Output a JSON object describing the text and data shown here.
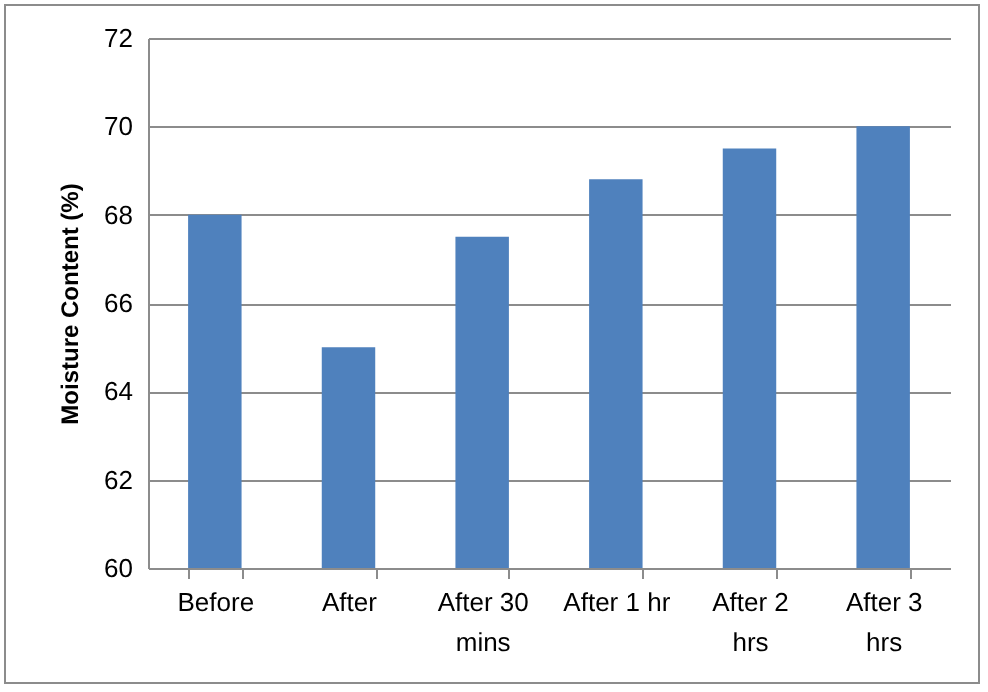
{
  "chart_data": {
    "type": "bar",
    "ylabel": "Moisture Content (%)",
    "categories": [
      "Before",
      "After",
      "After 30 mins",
      "After 1 hr",
      "After 2 hrs",
      "After 3 hrs"
    ],
    "values": [
      68,
      65,
      67.5,
      68.8,
      69.5,
      70
    ],
    "color": "#4f81bd",
    "ylim": [
      60,
      72
    ],
    "yticks": [
      60,
      62,
      64,
      66,
      68,
      70,
      72
    ],
    "grid": "y"
  }
}
